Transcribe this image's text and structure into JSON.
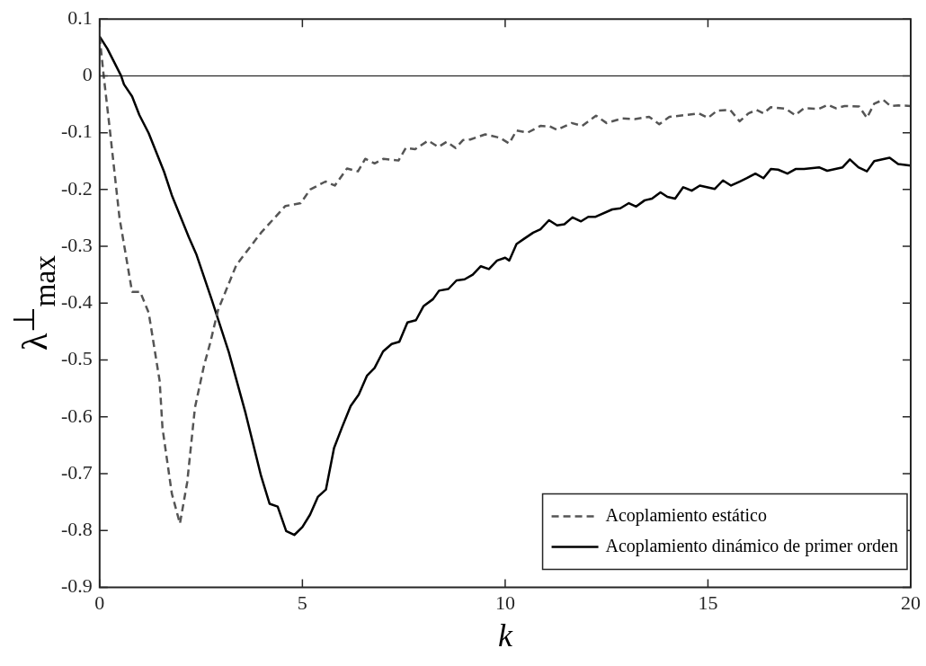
{
  "chart_data": {
    "type": "line",
    "xlabel": "k",
    "ylabel": "λ$^{⊥}$$_{max}$",
    "xlim": [
      0,
      20
    ],
    "xticks": [
      0,
      5,
      10,
      15,
      20
    ],
    "ylim": [
      -0.9,
      0.1
    ],
    "yticks": [
      -0.9,
      -0.8,
      -0.7,
      -0.6,
      -0.5,
      -0.4,
      -0.3,
      -0.2,
      -0.1,
      0,
      0.1
    ],
    "grid": false,
    "legend": "bottom right",
    "marker": "none",
    "ref_lines": [
      {
        "axis": "y",
        "value": 0,
        "color": "#000000",
        "line_style": "solid"
      }
    ],
    "series": [
      {
        "name": "Acoplamiento estático",
        "color": "#555555",
        "line_style": "dashed",
        "x": [
          0,
          0.1,
          0.26,
          0.49,
          0.8,
          1.0,
          1.21,
          1.48,
          1.55,
          1.78,
          1.98,
          2.16,
          2.35,
          2.57,
          2.73,
          2.92,
          3.37,
          3.98,
          4.58,
          4.96,
          5.19,
          5.57,
          5.8,
          6.1,
          6.37,
          6.55,
          6.78,
          7.0,
          7.37,
          7.55,
          7.78,
          8.1,
          8.35,
          8.56,
          8.78,
          8.96,
          9.14,
          9.51,
          9.87,
          10.1,
          10.28,
          10.55,
          10.87,
          11.1,
          11.28,
          11.64,
          11.9,
          12.24,
          12.5,
          12.88,
          13.2,
          13.55,
          13.8,
          14.05,
          14.46,
          14.78,
          15.0,
          15.23,
          15.55,
          15.78,
          16.0,
          16.2,
          16.37,
          16.55,
          16.92,
          17.15,
          17.37,
          17.74,
          17.96,
          18.15,
          18.37,
          18.73,
          18.92,
          19.1,
          19.32,
          19.5,
          19.7,
          20
        ],
        "values": [
          0.069,
          0,
          -0.1,
          -0.25,
          -0.38,
          -0.38,
          -0.417,
          -0.537,
          -0.62,
          -0.735,
          -0.788,
          -0.715,
          -0.584,
          -0.511,
          -0.469,
          -0.412,
          -0.333,
          -0.276,
          -0.229,
          -0.224,
          -0.2,
          -0.186,
          -0.193,
          -0.163,
          -0.168,
          -0.146,
          -0.154,
          -0.146,
          -0.149,
          -0.127,
          -0.129,
          -0.114,
          -0.125,
          -0.116,
          -0.127,
          -0.113,
          -0.112,
          -0.103,
          -0.109,
          -0.119,
          -0.096,
          -0.1,
          -0.088,
          -0.089,
          -0.095,
          -0.083,
          -0.088,
          -0.07,
          -0.083,
          -0.075,
          -0.076,
          -0.072,
          -0.085,
          -0.072,
          -0.069,
          -0.066,
          -0.074,
          -0.061,
          -0.06,
          -0.08,
          -0.066,
          -0.06,
          -0.066,
          -0.055,
          -0.058,
          -0.069,
          -0.057,
          -0.058,
          -0.051,
          -0.057,
          -0.053,
          -0.054,
          -0.074,
          -0.049,
          -0.042,
          -0.053,
          -0.052,
          -0.053
        ]
      },
      {
        "name": "Acoplamiento dinámico de primer orden",
        "color": "#000000",
        "line_style": "solid",
        "x": [
          0,
          0.19,
          0.53,
          0.6,
          0.8,
          0.98,
          1.21,
          1.59,
          1.78,
          2.2,
          2.39,
          2.76,
          3.18,
          3.3,
          3.6,
          3.98,
          4.19,
          4.39,
          4.6,
          4.8,
          5.0,
          5.19,
          5.38,
          5.58,
          5.78,
          5.98,
          6.19,
          6.39,
          6.59,
          6.78,
          6.99,
          7.2,
          7.39,
          7.59,
          7.8,
          7.99,
          8.22,
          8.37,
          8.6,
          8.8,
          9.0,
          9.2,
          9.4,
          9.6,
          9.8,
          10.0,
          10.1,
          10.28,
          10.46,
          10.69,
          10.87,
          11.08,
          11.28,
          11.46,
          11.66,
          11.87,
          12.05,
          12.23,
          12.64,
          12.84,
          13.05,
          13.23,
          13.44,
          13.62,
          13.83,
          14.0,
          14.19,
          14.39,
          14.6,
          14.8,
          15.17,
          15.37,
          15.57,
          15.78,
          15.96,
          16.17,
          16.37,
          16.55,
          16.73,
          16.96,
          17.16,
          17.37,
          17.74,
          17.94,
          18.32,
          18.5,
          18.71,
          18.92,
          19.1,
          19.48,
          19.69,
          20
        ],
        "values": [
          0.069,
          0.048,
          0,
          -0.015,
          -0.036,
          -0.069,
          -0.101,
          -0.169,
          -0.21,
          -0.284,
          -0.315,
          -0.393,
          -0.485,
          -0.516,
          -0.594,
          -0.704,
          -0.753,
          -0.758,
          -0.801,
          -0.808,
          -0.794,
          -0.772,
          -0.741,
          -0.728,
          -0.655,
          -0.618,
          -0.581,
          -0.561,
          -0.528,
          -0.514,
          -0.485,
          -0.472,
          -0.468,
          -0.434,
          -0.43,
          -0.405,
          -0.393,
          -0.378,
          -0.375,
          -0.36,
          -0.358,
          -0.35,
          -0.335,
          -0.34,
          -0.325,
          -0.32,
          -0.325,
          -0.296,
          -0.287,
          -0.276,
          -0.27,
          -0.254,
          -0.263,
          -0.261,
          -0.249,
          -0.256,
          -0.248,
          -0.248,
          -0.235,
          -0.233,
          -0.224,
          -0.23,
          -0.219,
          -0.216,
          -0.205,
          -0.213,
          -0.216,
          -0.196,
          -0.202,
          -0.193,
          -0.199,
          -0.184,
          -0.193,
          -0.186,
          -0.18,
          -0.172,
          -0.18,
          -0.164,
          -0.165,
          -0.172,
          -0.164,
          -0.164,
          -0.161,
          -0.167,
          -0.161,
          -0.147,
          -0.161,
          -0.168,
          -0.15,
          -0.144,
          -0.155,
          -0.158
        ]
      }
    ]
  }
}
